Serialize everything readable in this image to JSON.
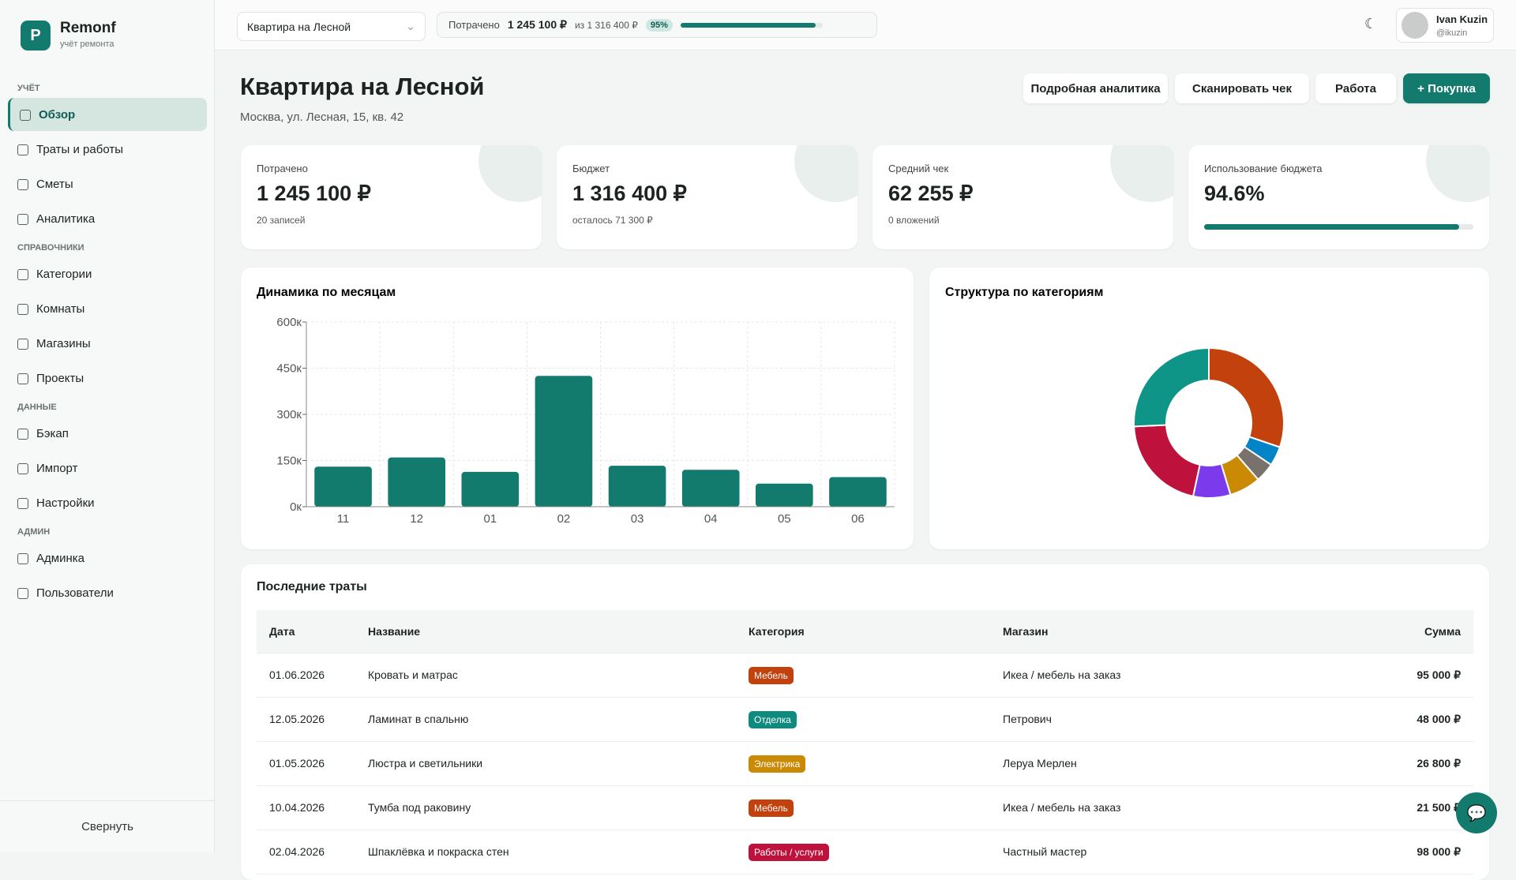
{
  "sidebar": {
    "logo": "P",
    "brand": "Remonf",
    "tagline": "учёт ремонта",
    "sections": [
      {
        "title": "УЧЁТ",
        "items": [
          "Обзор",
          "Траты и работы",
          "Сметы",
          "Аналитика"
        ]
      },
      {
        "title": "СПРАВОЧНИКИ",
        "items": [
          "Категории",
          "Комнаты",
          "Магазины",
          "Проекты"
        ]
      },
      {
        "title": "ДАННЫЕ",
        "items": [
          "Бэкап",
          "Импорт",
          "Настройки"
        ]
      },
      {
        "title": "АДМИН",
        "items": [
          "Админка",
          "Пользователи"
        ]
      }
    ],
    "collapse": "Свернуть"
  },
  "topbar": {
    "project": "Квартира на Лесной",
    "spent_label": "Потрачено",
    "spent": "1 245 100 ₽",
    "of": "из 1 316 400 ₽",
    "usage": {
      "value": 95,
      "label": "95%"
    },
    "user": "Ivan Kuzin",
    "handle": "@ikuzin"
  },
  "page": {
    "title": "Квартира на Лесной",
    "address": "Москва, ул. Лесная, 15, кв. 42",
    "buttons": [
      "Подробная аналитика",
      "Сканировать чек",
      "Работа",
      "+ Покупка"
    ]
  },
  "stats": [
    {
      "label": "Потрачено",
      "value": "1 245 100 ₽",
      "note": "20 записей"
    },
    {
      "label": "Бюджет",
      "value": "1 316 400 ₽",
      "note": "осталось 71 300 ₽"
    },
    {
      "label": "Средний чек",
      "value": "62 255 ₽",
      "note": "0 вложений"
    },
    {
      "label": "Использование бюджета",
      "value": {
        "value": 94.6,
        "label": "94.6%"
      }
    }
  ],
  "chart_data": [
    {
      "type": "bar",
      "title": "Динамика по месяцам",
      "categories": [
        "11",
        "12",
        "01",
        "02",
        "03",
        "04",
        "05",
        "06"
      ],
      "values": [
        130000,
        160000,
        113000,
        425000,
        133000,
        120000,
        75000,
        96000
      ],
      "color": "#137a6e",
      "ylim": [
        0,
        600000
      ],
      "yticks": [
        {
          "value": 0,
          "label": "0к"
        },
        {
          "value": 150000,
          "label": "150к"
        },
        {
          "value": 300000,
          "label": "300к"
        },
        {
          "value": 450000,
          "label": "450к"
        },
        {
          "value": 600000,
          "label": "600к"
        }
      ],
      "grid": true
    },
    {
      "type": "pie",
      "title": "Структура по категориям",
      "values": [
        94,
        13,
        13,
        21,
        25,
        65,
        80
      ],
      "colors": [
        "#c2410c",
        "#0284c7",
        "#78716c",
        "#ca8a04",
        "#7c3aed",
        "#be123c",
        "#0f9488"
      ],
      "donut": true
    }
  ],
  "table": {
    "title": "Последние траты",
    "columns": [
      "Дата",
      "Название",
      "Категория",
      "Магазин",
      "Сумма"
    ],
    "rows": [
      {
        "date": "01.06.2026",
        "name": "Кровать и матрас",
        "category": "Мебель",
        "color": "#c2410c",
        "shop": "Икеа / мебель на заказ",
        "sum": "95 000 ₽"
      },
      {
        "date": "12.05.2026",
        "name": "Ламинат в спальню",
        "category": "Отделка",
        "color": "#0f8a7e",
        "shop": "Петрович",
        "sum": "48 000 ₽"
      },
      {
        "date": "01.05.2026",
        "name": "Люстра и светильники",
        "category": "Электрика",
        "color": "#ca8a04",
        "shop": "Леруа Мерлен",
        "sum": "26 800 ₽"
      },
      {
        "date": "10.04.2026",
        "name": "Тумба под раковину",
        "category": "Мебель",
        "color": "#c2410c",
        "shop": "Икеа / мебель на заказ",
        "sum": "21 500 ₽"
      },
      {
        "date": "02.04.2026",
        "name": "Шпаклёвка и покраска стен",
        "category": "Работы / услуги",
        "color": "#be123c",
        "shop": "Частный мастер",
        "sum": "98 000 ₽"
      }
    ]
  }
}
